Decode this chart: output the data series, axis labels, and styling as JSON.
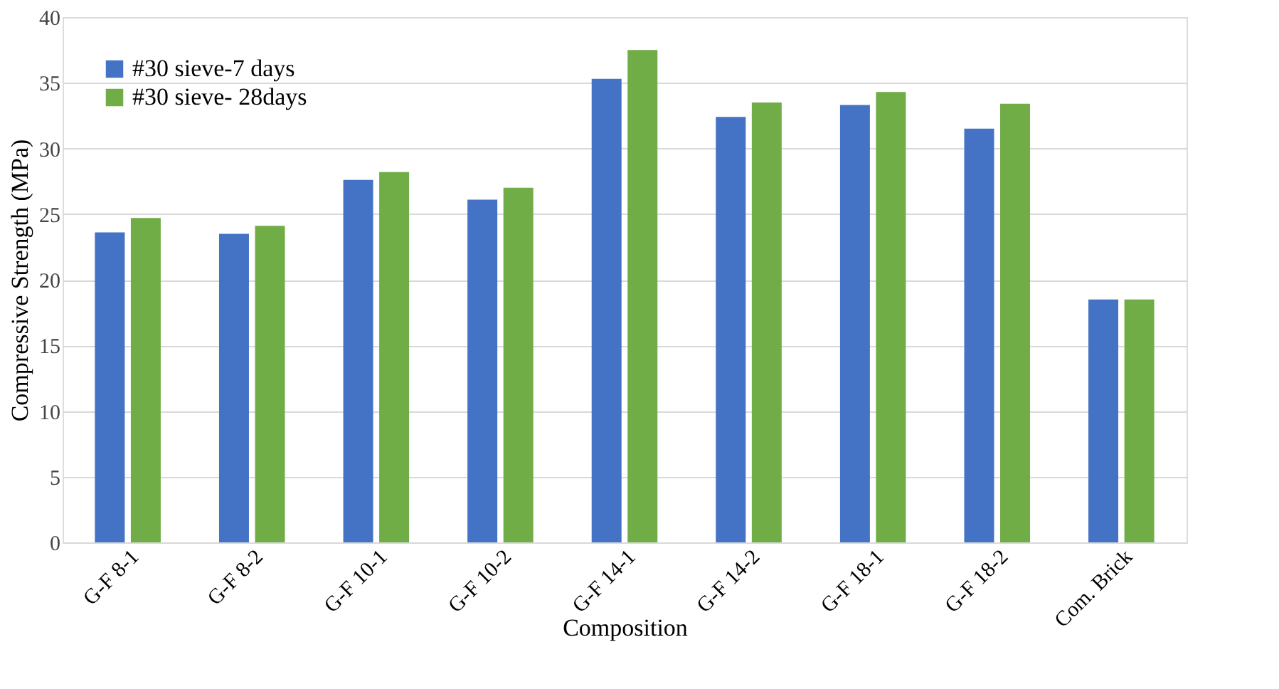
{
  "chart_data": {
    "type": "bar",
    "xlabel": "Composition",
    "ylabel": "Compressive Strength (MPa)",
    "categories": [
      "G-F 8-1",
      "G-F 8-2",
      "G-F 10-1",
      "G-F 10-2",
      "G-F 14-1",
      "G-F 14-2",
      "G-F 18-1",
      "G-F 18-2",
      "Com. Brick"
    ],
    "series": [
      {
        "name": "#30 sieve-7 days",
        "color": "#4472c4",
        "values": [
          23.6,
          23.5,
          27.6,
          26.1,
          35.3,
          32.4,
          33.3,
          31.5,
          18.5
        ]
      },
      {
        "name": "#30 sieve- 28days",
        "color": "#70ad47",
        "values": [
          24.7,
          24.1,
          28.2,
          27.0,
          37.5,
          33.5,
          34.3,
          33.4,
          18.5
        ]
      }
    ],
    "ylim": [
      0,
      40
    ],
    "yticks": [
      0,
      5,
      10,
      15,
      20,
      25,
      30,
      35,
      40
    ],
    "grid": "y",
    "legend": "top left"
  }
}
